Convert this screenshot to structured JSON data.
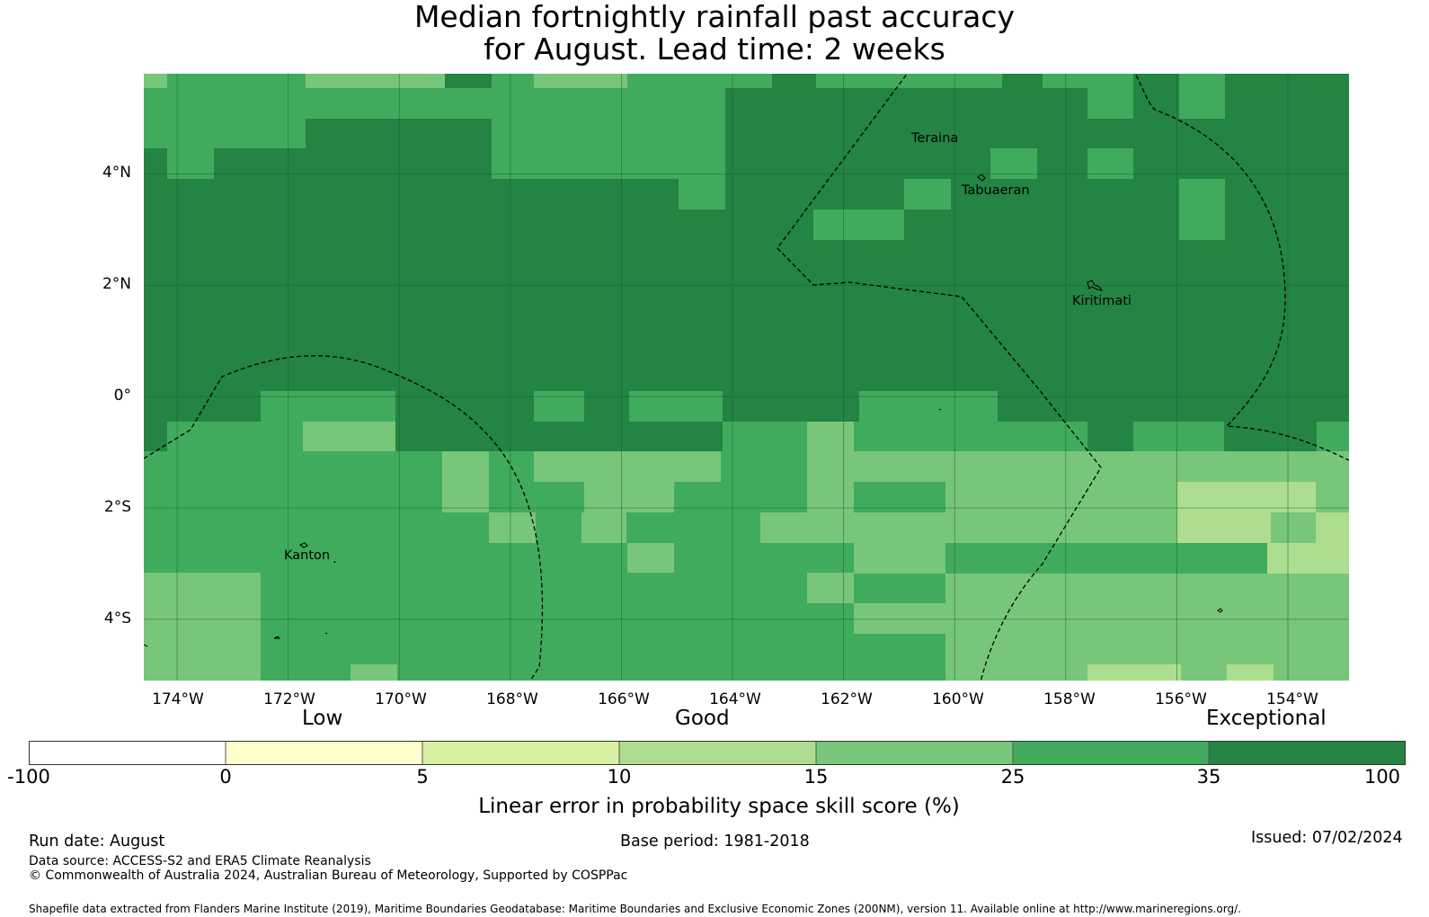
{
  "title": {
    "line1": "Median fortnightly rainfall past accuracy",
    "line2": "for August. Lead time: 2 weeks"
  },
  "map": {
    "lon_range": [
      -174.6,
      -152.9
    ],
    "lat_range": [
      -5.1,
      5.8
    ],
    "x_ticks": [
      "174°W",
      "172°W",
      "170°W",
      "168°W",
      "166°W",
      "164°W",
      "162°W",
      "160°W",
      "158°W",
      "156°W",
      "154°W"
    ],
    "x_tick_values": [
      -174,
      -172,
      -170,
      -168,
      -166,
      -164,
      -162,
      -160,
      -158,
      -156,
      -154
    ],
    "y_ticks": [
      "4°N",
      "2°N",
      "0°",
      "2°S",
      "4°S"
    ],
    "y_tick_values": [
      4,
      2,
      0,
      -2,
      -4
    ],
    "places": [
      {
        "name": "Teraina",
        "lon": -160.8,
        "lat": 4.7
      },
      {
        "name": "Tabuaeran",
        "lon": -159.4,
        "lat": 3.85
      },
      {
        "name": "Kiritimati",
        "lon": -157.4,
        "lat": 1.8
      },
      {
        "name": "Kanton",
        "lon": -171.7,
        "lat": -2.8
      }
    ],
    "grid_lines": true
  },
  "colorbar": {
    "category_labels": [
      "Low",
      "Good",
      "Exceptional"
    ],
    "tick_labels": [
      "-100",
      "0",
      "5",
      "10",
      "15",
      "25",
      "35",
      "100"
    ],
    "colors": [
      "#ffffff",
      "#ffffcc",
      "#d9f0a3",
      "#addd8e",
      "#78c679",
      "#41ab5d",
      "#238443"
    ],
    "title": "Linear error in probability space skill score (%)"
  },
  "footer": {
    "run_date": "Run date: August",
    "base_period": "Base period: 1981-2018",
    "issued": "Issued: 07/02/2024",
    "data_source": "Data source: ACCESS-S2 and ERA5 Climate Reanalysis",
    "copyright": "© Commonwealth of Australia 2024, Australian Bureau of Meteorology, Supported by COSPPac",
    "shapefile": "Shapefile data extracted from Flanders Marine Institute (2019), Maritime Boundaries Geodatabase: Maritime Boundaries and Exclusive Economic Zones (200NM), version 11. Available online at http://www.marineregions.org/."
  }
}
